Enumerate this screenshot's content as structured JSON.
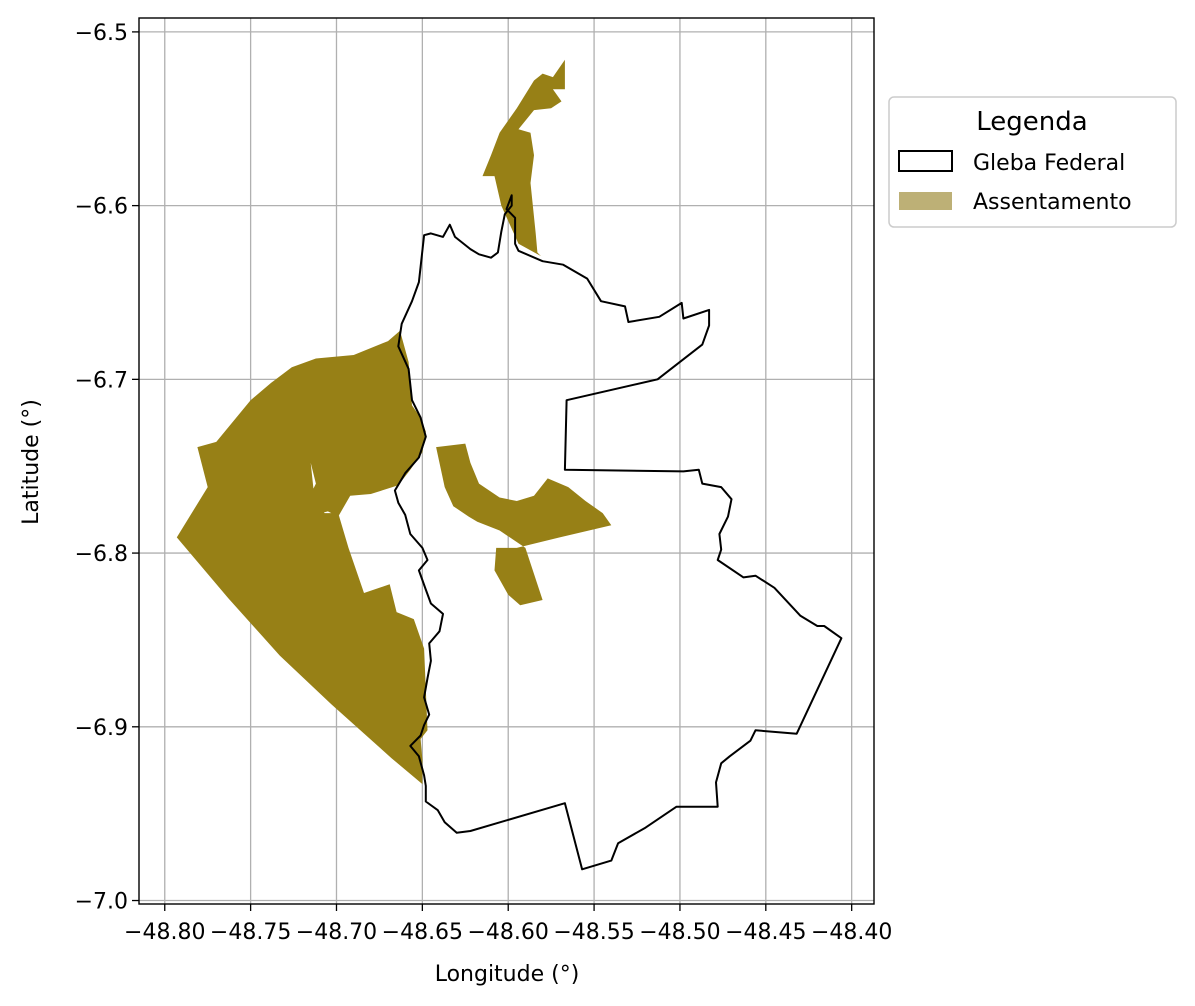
{
  "chart_data": {
    "type": "map",
    "title": "",
    "xlabel": "Longitude (°)",
    "ylabel": "Latitude (°)",
    "xlim": [
      -48.815,
      -48.387
    ],
    "ylim": [
      -7.002,
      -6.492
    ],
    "xticks": [
      -48.8,
      -48.75,
      -48.7,
      -48.65,
      -48.6,
      -48.55,
      -48.5,
      -48.45,
      -48.4
    ],
    "xtick_labels": [
      "−48.80",
      "−48.75",
      "−48.70",
      "−48.65",
      "−48.60",
      "−48.55",
      "−48.50",
      "−48.45",
      "−48.40"
    ],
    "yticks": [
      -6.5,
      -6.6,
      -6.7,
      -6.8,
      -6.9,
      -7.0
    ],
    "ytick_labels": [
      "−6.5",
      "−6.6",
      "−6.7",
      "−6.8",
      "−6.9",
      "−7.0"
    ],
    "grid": true,
    "legend": {
      "title": "Legenda",
      "placement": "outside upper-right",
      "entries": [
        {
          "label": "Gleba Federal",
          "style": "outline",
          "edge": "#000000",
          "fill": "#ffffff"
        },
        {
          "label": "Assentamento",
          "style": "fill",
          "fill": "#bdb076"
        }
      ]
    },
    "colors": {
      "assentamento": "#978016",
      "assentamento_legend": "#bdb076",
      "gleba_edge": "#000000",
      "grid": "#b0b0b0"
    },
    "layers": [
      {
        "name": "Assentamento",
        "color": "#978016",
        "polygons": [
          [
            [
              -48.793,
              -6.791
            ],
            [
              -48.775,
              -6.762
            ],
            [
              -48.781,
              -6.739
            ],
            [
              -48.77,
              -6.736
            ],
            [
              -48.75,
              -6.712
            ],
            [
              -48.738,
              -6.702
            ],
            [
              -48.726,
              -6.693
            ],
            [
              -48.712,
              -6.688
            ],
            [
              -48.69,
              -6.686
            ],
            [
              -48.67,
              -6.678
            ],
            [
              -48.663,
              -6.672
            ],
            [
              -48.658,
              -6.69
            ],
            [
              -48.656,
              -6.715
            ],
            [
              -48.651,
              -6.722
            ],
            [
              -48.648,
              -6.73
            ],
            [
              -48.65,
              -6.742
            ],
            [
              -48.657,
              -6.752
            ],
            [
              -48.664,
              -6.761
            ],
            [
              -48.68,
              -6.766
            ],
            [
              -48.692,
              -6.767
            ],
            [
              -48.699,
              -6.779
            ],
            [
              -48.705,
              -6.776
            ],
            [
              -48.713,
              -6.778
            ],
            [
              -48.719,
              -6.774
            ],
            [
              -48.712,
              -6.76
            ],
            [
              -48.715,
              -6.748
            ],
            [
              -48.728,
              -6.734
            ],
            [
              -48.725,
              -6.736
            ],
            [
              -48.715,
              -6.748
            ],
            [
              -48.713,
              -6.767
            ],
            [
              -48.707,
              -6.777
            ],
            [
              -48.699,
              -6.777
            ],
            [
              -48.693,
              -6.797
            ],
            [
              -48.684,
              -6.823
            ],
            [
              -48.669,
              -6.818
            ],
            [
              -48.665,
              -6.834
            ],
            [
              -48.655,
              -6.838
            ],
            [
              -48.649,
              -6.855
            ],
            [
              -48.647,
              -6.902
            ],
            [
              -48.651,
              -6.907
            ],
            [
              -48.65,
              -6.919
            ],
            [
              -48.65,
              -6.933
            ],
            [
              -48.668,
              -6.918
            ],
            [
              -48.703,
              -6.887
            ],
            [
              -48.733,
              -6.859
            ],
            [
              -48.763,
              -6.826
            ]
          ],
          [
            [
              -48.594,
              -6.556
            ],
            [
              -48.587,
              -6.558
            ],
            [
              -48.585,
              -6.571
            ],
            [
              -48.587,
              -6.587
            ],
            [
              -48.586,
              -6.597
            ],
            [
              -48.584,
              -6.616
            ],
            [
              -48.583,
              -6.627
            ],
            [
              -48.581,
              -6.629
            ],
            [
              -48.594,
              -6.622
            ],
            [
              -48.604,
              -6.6
            ],
            [
              -48.608,
              -6.583
            ],
            [
              -48.615,
              -6.583
            ],
            [
              -48.61,
              -6.571
            ],
            [
              -48.605,
              -6.558
            ],
            [
              -48.595,
              -6.544
            ],
            [
              -48.585,
              -6.528
            ],
            [
              -48.58,
              -6.524
            ],
            [
              -48.574,
              -6.526
            ],
            [
              -48.567,
              -6.516
            ],
            [
              -48.567,
              -6.533
            ],
            [
              -48.574,
              -6.533
            ],
            [
              -48.569,
              -6.54
            ],
            [
              -48.575,
              -6.544
            ],
            [
              -48.585,
              -6.545
            ]
          ],
          [
            [
              -48.642,
              -6.739
            ],
            [
              -48.625,
              -6.737
            ],
            [
              -48.622,
              -6.748
            ],
            [
              -48.617,
              -6.76
            ],
            [
              -48.605,
              -6.768
            ],
            [
              -48.595,
              -6.77
            ],
            [
              -48.585,
              -6.767
            ],
            [
              -48.577,
              -6.757
            ],
            [
              -48.565,
              -6.762
            ],
            [
              -48.555,
              -6.77
            ],
            [
              -48.545,
              -6.777
            ],
            [
              -48.54,
              -6.784
            ],
            [
              -48.57,
              -6.791
            ],
            [
              -48.595,
              -6.797
            ],
            [
              -48.607,
              -6.797
            ],
            [
              -48.608,
              -6.81
            ],
            [
              -48.6,
              -6.824
            ],
            [
              -48.593,
              -6.83
            ],
            [
              -48.58,
              -6.827
            ],
            [
              -48.59,
              -6.797
            ],
            [
              -48.605,
              -6.787
            ],
            [
              -48.618,
              -6.782
            ],
            [
              -48.623,
              -6.779
            ],
            [
              -48.632,
              -6.773
            ],
            [
              -48.637,
              -6.762
            ]
          ]
        ]
      },
      {
        "name": "Gleba Federal",
        "edge": "#000000",
        "polygons": [
          [
            [
              -48.598,
              -6.594
            ],
            [
              -48.601,
              -6.602
            ],
            [
              -48.596,
              -6.607
            ],
            [
              -48.596,
              -6.622
            ],
            [
              -48.594,
              -6.626
            ],
            [
              -48.58,
              -6.632
            ],
            [
              -48.568,
              -6.634
            ],
            [
              -48.554,
              -6.642
            ],
            [
              -48.546,
              -6.655
            ],
            [
              -48.532,
              -6.658
            ],
            [
              -48.53,
              -6.667
            ],
            [
              -48.512,
              -6.664
            ],
            [
              -48.499,
              -6.656
            ],
            [
              -48.498,
              -6.665
            ],
            [
              -48.483,
              -6.66
            ],
            [
              -48.483,
              -6.669
            ],
            [
              -48.487,
              -6.68
            ],
            [
              -48.513,
              -6.7
            ],
            [
              -48.566,
              -6.712
            ],
            [
              -48.567,
              -6.752
            ],
            [
              -48.498,
              -6.753
            ],
            [
              -48.489,
              -6.752
            ],
            [
              -48.487,
              -6.76
            ],
            [
              -48.476,
              -6.762
            ],
            [
              -48.47,
              -6.769
            ],
            [
              -48.472,
              -6.779
            ],
            [
              -48.477,
              -6.789
            ],
            [
              -48.476,
              -6.798
            ],
            [
              -48.478,
              -6.804
            ],
            [
              -48.463,
              -6.814
            ],
            [
              -48.456,
              -6.813
            ],
            [
              -48.445,
              -6.82
            ],
            [
              -48.43,
              -6.836
            ],
            [
              -48.42,
              -6.842
            ],
            [
              -48.416,
              -6.842
            ],
            [
              -48.406,
              -6.849
            ],
            [
              -48.432,
              -6.904
            ],
            [
              -48.456,
              -6.902
            ],
            [
              -48.459,
              -6.908
            ],
            [
              -48.471,
              -6.917
            ],
            [
              -48.476,
              -6.921
            ],
            [
              -48.479,
              -6.932
            ],
            [
              -48.478,
              -6.946
            ],
            [
              -48.502,
              -6.946
            ],
            [
              -48.52,
              -6.958
            ],
            [
              -48.536,
              -6.967
            ],
            [
              -48.54,
              -6.977
            ],
            [
              -48.557,
              -6.982
            ],
            [
              -48.567,
              -6.944
            ],
            [
              -48.622,
              -6.96
            ],
            [
              -48.63,
              -6.961
            ],
            [
              -48.637,
              -6.955
            ],
            [
              -48.641,
              -6.948
            ],
            [
              -48.648,
              -6.943
            ],
            [
              -48.648,
              -6.934
            ],
            [
              -48.649,
              -6.928
            ],
            [
              -48.652,
              -6.917
            ],
            [
              -48.657,
              -6.911
            ],
            [
              -48.651,
              -6.905
            ],
            [
              -48.649,
              -6.899
            ],
            [
              -48.646,
              -6.893
            ],
            [
              -48.649,
              -6.883
            ],
            [
              -48.647,
              -6.872
            ],
            [
              -48.645,
              -6.862
            ],
            [
              -48.646,
              -6.852
            ],
            [
              -48.64,
              -6.845
            ],
            [
              -48.638,
              -6.835
            ],
            [
              -48.645,
              -6.829
            ],
            [
              -48.648,
              -6.821
            ],
            [
              -48.652,
              -6.81
            ],
            [
              -48.647,
              -6.804
            ],
            [
              -48.65,
              -6.797
            ],
            [
              -48.657,
              -6.789
            ],
            [
              -48.66,
              -6.778
            ],
            [
              -48.664,
              -6.771
            ],
            [
              -48.666,
              -6.764
            ],
            [
              -48.66,
              -6.754
            ],
            [
              -48.652,
              -6.745
            ],
            [
              -48.648,
              -6.733
            ],
            [
              -48.651,
              -6.722
            ],
            [
              -48.656,
              -6.712
            ],
            [
              -48.658,
              -6.694
            ],
            [
              -48.664,
              -6.681
            ],
            [
              -48.662,
              -6.668
            ],
            [
              -48.656,
              -6.655
            ],
            [
              -48.652,
              -6.644
            ],
            [
              -48.649,
              -6.617
            ],
            [
              -48.645,
              -6.616
            ],
            [
              -48.638,
              -6.618
            ],
            [
              -48.634,
              -6.611
            ],
            [
              -48.631,
              -6.618
            ],
            [
              -48.622,
              -6.625
            ],
            [
              -48.617,
              -6.628
            ],
            [
              -48.61,
              -6.63
            ],
            [
              -48.606,
              -6.627
            ],
            [
              -48.604,
              -6.615
            ],
            [
              -48.602,
              -6.605
            ],
            [
              -48.598,
              -6.6
            ]
          ]
        ]
      }
    ]
  }
}
